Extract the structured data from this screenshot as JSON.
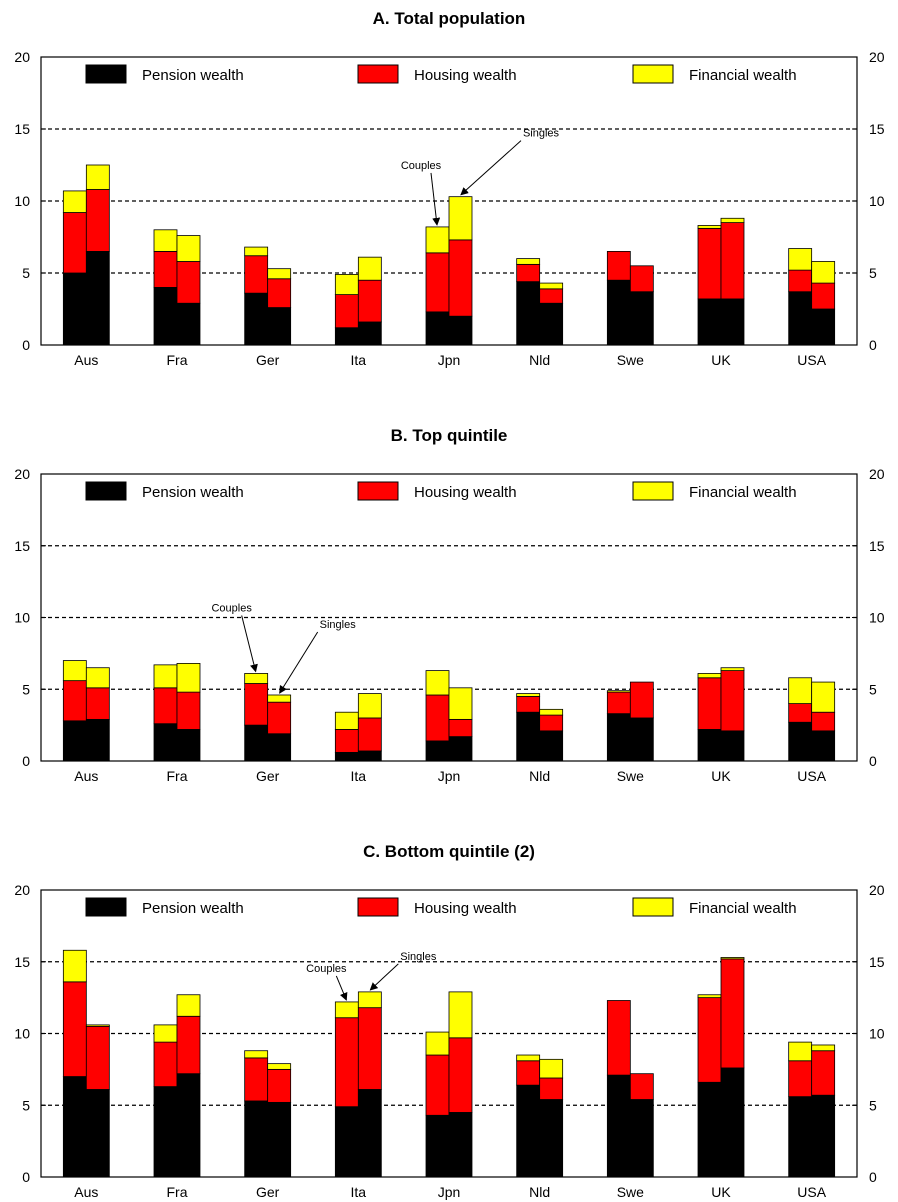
{
  "chart_data": [
    {
      "type": "bar",
      "title": "A. Total population",
      "categories": [
        "Aus",
        "Fra",
        "Ger",
        "Ita",
        "Jpn",
        "Nld",
        "Swe",
        "UK",
        "USA"
      ],
      "ylim": [
        0,
        20
      ],
      "yticks": [
        0,
        5,
        10,
        15,
        20
      ],
      "grid": "dashed at 5, 10, 15",
      "legend_position": "top",
      "bar_groups": [
        "Couples",
        "Singles"
      ],
      "series": [
        {
          "name": "Pension wealth",
          "color": "#000000",
          "couples": [
            5.0,
            4.0,
            3.6,
            1.2,
            2.3,
            4.4,
            4.5,
            3.2,
            3.7
          ],
          "singles": [
            6.5,
            2.9,
            2.6,
            1.6,
            2.0,
            2.9,
            3.7,
            3.2,
            2.5
          ]
        },
        {
          "name": "Housing wealth",
          "color": "#ff0000",
          "couples": [
            4.2,
            2.5,
            2.6,
            2.3,
            4.1,
            1.2,
            2.0,
            4.9,
            1.5
          ],
          "singles": [
            4.3,
            2.9,
            2.0,
            2.9,
            5.3,
            1.0,
            1.8,
            5.3,
            1.8
          ]
        },
        {
          "name": "Financial wealth",
          "color": "#ffff00",
          "couples": [
            1.5,
            1.5,
            0.6,
            1.4,
            1.8,
            0.4,
            0.0,
            0.2,
            1.5
          ],
          "singles": [
            1.7,
            1.8,
            0.7,
            1.6,
            3.0,
            0.4,
            0.0,
            0.3,
            1.5
          ]
        }
      ],
      "annotations": [
        {
          "text": "Couples",
          "category": "Jpn",
          "target": "couples"
        },
        {
          "text": "Singles",
          "category": "Jpn",
          "target": "singles"
        }
      ]
    },
    {
      "type": "bar",
      "title": "B. Top quintile",
      "categories": [
        "Aus",
        "Fra",
        "Ger",
        "Ita",
        "Jpn",
        "Nld",
        "Swe",
        "UK",
        "USA"
      ],
      "ylim": [
        0,
        20
      ],
      "yticks": [
        0,
        5,
        10,
        15,
        20
      ],
      "grid": "dashed at 5, 10, 15",
      "legend_position": "top",
      "bar_groups": [
        "Couples",
        "Singles"
      ],
      "series": [
        {
          "name": "Pension wealth",
          "color": "#000000",
          "couples": [
            2.8,
            2.6,
            2.5,
            0.6,
            1.4,
            3.4,
            3.3,
            2.2,
            2.7
          ],
          "singles": [
            2.9,
            2.2,
            1.9,
            0.7,
            1.7,
            2.1,
            3.0,
            2.1,
            2.1
          ]
        },
        {
          "name": "Housing wealth",
          "color": "#ff0000",
          "couples": [
            2.8,
            2.5,
            2.9,
            1.6,
            3.2,
            1.1,
            1.5,
            3.6,
            1.3
          ],
          "singles": [
            2.2,
            2.6,
            2.2,
            2.3,
            1.2,
            1.1,
            2.5,
            4.2,
            1.3
          ]
        },
        {
          "name": "Financial wealth",
          "color": "#ffff00",
          "couples": [
            1.4,
            1.6,
            0.7,
            1.2,
            1.7,
            0.2,
            0.1,
            0.3,
            1.8
          ],
          "singles": [
            1.4,
            2.0,
            0.5,
            1.7,
            2.2,
            0.4,
            0.0,
            0.2,
            2.1
          ]
        }
      ],
      "annotations": [
        {
          "text": "Couples",
          "category": "Ger",
          "target": "couples"
        },
        {
          "text": "Singles",
          "category": "Ger",
          "target": "singles"
        }
      ]
    },
    {
      "type": "bar",
      "title": "C. Bottom quintile (2)",
      "categories": [
        "Aus",
        "Fra",
        "Ger",
        "Ita",
        "Jpn",
        "Nld",
        "Swe",
        "UK",
        "USA"
      ],
      "ylim": [
        0,
        20
      ],
      "yticks": [
        0,
        5,
        10,
        15,
        20
      ],
      "grid": "dashed at 5, 10, 15",
      "legend_position": "top",
      "bar_groups": [
        "Couples",
        "Singles"
      ],
      "series": [
        {
          "name": "Pension wealth",
          "color": "#000000",
          "couples": [
            7.0,
            6.3,
            5.3,
            4.9,
            4.3,
            6.4,
            7.1,
            6.6,
            5.6
          ],
          "singles": [
            6.1,
            7.2,
            5.2,
            6.1,
            4.5,
            5.4,
            5.4,
            7.6,
            5.7
          ]
        },
        {
          "name": "Housing wealth",
          "color": "#ff0000",
          "couples": [
            6.6,
            3.1,
            3.0,
            6.2,
            4.2,
            1.7,
            5.2,
            5.9,
            2.5
          ],
          "singles": [
            4.4,
            4.0,
            2.3,
            5.7,
            5.2,
            1.5,
            1.8,
            7.6,
            3.1
          ]
        },
        {
          "name": "Financial wealth",
          "color": "#ffff00",
          "couples": [
            2.2,
            1.2,
            0.5,
            1.1,
            1.6,
            0.4,
            0.0,
            0.2,
            1.3
          ],
          "singles": [
            0.1,
            1.5,
            0.4,
            1.1,
            3.2,
            1.3,
            0.0,
            0.1,
            0.4
          ]
        }
      ],
      "annotations": [
        {
          "text": "Couples",
          "category": "Ita",
          "target": "couples"
        },
        {
          "text": "Singles",
          "category": "Ita",
          "target": "singles"
        }
      ]
    }
  ]
}
